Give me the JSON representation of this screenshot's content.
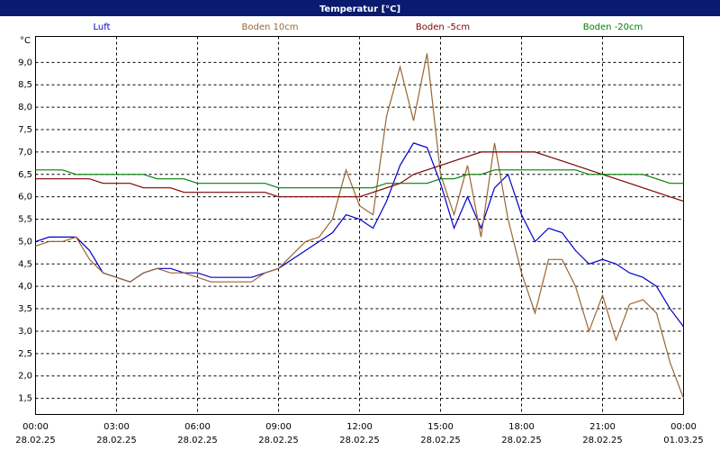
{
  "chart_data": {
    "type": "line",
    "title": "Temperatur [°C]",
    "y_label": "°C",
    "x": [
      0,
      0.5,
      1,
      1.5,
      2,
      2.5,
      3,
      3.5,
      4,
      4.5,
      5,
      5.5,
      6,
      6.5,
      7,
      7.5,
      8,
      8.5,
      9,
      9.5,
      10,
      10.5,
      11,
      11.5,
      12,
      12.5,
      13,
      13.5,
      14,
      14.5,
      15,
      15.5,
      16,
      16.5,
      17,
      17.5,
      18,
      18.5,
      19,
      19.5,
      20,
      20.5,
      21,
      21.5,
      22,
      22.5,
      23,
      23.5,
      24
    ],
    "series": [
      {
        "name": "Luft",
        "color": "#0000cc",
        "values": [
          5.0,
          5.1,
          5.1,
          5.1,
          4.8,
          4.3,
          4.2,
          4.1,
          4.3,
          4.4,
          4.4,
          4.3,
          4.3,
          4.2,
          4.2,
          4.2,
          4.2,
          4.3,
          4.4,
          4.6,
          4.8,
          5.0,
          5.2,
          5.6,
          5.5,
          5.3,
          5.9,
          6.7,
          7.2,
          7.1,
          6.3,
          5.3,
          6.0,
          5.3,
          6.2,
          6.5,
          5.6,
          5.0,
          5.3,
          5.2,
          4.8,
          4.5,
          4.6,
          4.5,
          4.3,
          4.2,
          4.0,
          3.5,
          3.1
        ]
      },
      {
        "name": "Boden 10cm",
        "color": "#996633",
        "values": [
          4.9,
          5.0,
          5.0,
          5.1,
          4.6,
          4.3,
          4.2,
          4.1,
          4.3,
          4.4,
          4.3,
          4.3,
          4.2,
          4.1,
          4.1,
          4.1,
          4.1,
          4.3,
          4.4,
          4.7,
          5.0,
          5.1,
          5.5,
          6.6,
          5.8,
          5.6,
          7.8,
          8.9,
          7.7,
          9.2,
          6.5,
          5.6,
          6.7,
          5.1,
          7.2,
          5.5,
          4.3,
          3.4,
          4.6,
          4.6,
          4.0,
          3.0,
          3.8,
          2.8,
          3.6,
          3.7,
          3.4,
          2.3,
          1.5
        ]
      },
      {
        "name": "Boden -5cm",
        "color": "#800000",
        "values": [
          6.4,
          6.4,
          6.4,
          6.4,
          6.4,
          6.3,
          6.3,
          6.3,
          6.2,
          6.2,
          6.2,
          6.1,
          6.1,
          6.1,
          6.1,
          6.1,
          6.1,
          6.1,
          6.0,
          6.0,
          6.0,
          6.0,
          6.0,
          6.0,
          6.0,
          6.1,
          6.2,
          6.3,
          6.5,
          6.6,
          6.7,
          6.8,
          6.9,
          7.0,
          7.0,
          7.0,
          7.0,
          7.0,
          6.9,
          6.8,
          6.7,
          6.6,
          6.5,
          6.4,
          6.3,
          6.2,
          6.1,
          6.0,
          5.9
        ]
      },
      {
        "name": "Boden -20cm",
        "color": "#008000",
        "values": [
          6.6,
          6.6,
          6.6,
          6.5,
          6.5,
          6.5,
          6.5,
          6.5,
          6.5,
          6.4,
          6.4,
          6.4,
          6.3,
          6.3,
          6.3,
          6.3,
          6.3,
          6.3,
          6.2,
          6.2,
          6.2,
          6.2,
          6.2,
          6.2,
          6.2,
          6.2,
          6.3,
          6.3,
          6.3,
          6.3,
          6.4,
          6.4,
          6.5,
          6.5,
          6.6,
          6.6,
          6.6,
          6.6,
          6.6,
          6.6,
          6.6,
          6.5,
          6.5,
          6.5,
          6.5,
          6.5,
          6.4,
          6.3,
          6.3
        ]
      }
    ],
    "xlim": [
      0,
      24
    ],
    "xticks": [
      {
        "value": 0,
        "label": "00:00",
        "date": "28.02.25"
      },
      {
        "value": 3,
        "label": "03:00",
        "date": "28.02.25"
      },
      {
        "value": 6,
        "label": "06:00",
        "date": "28.02.25"
      },
      {
        "value": 9,
        "label": "09:00",
        "date": "28.02.25"
      },
      {
        "value": 12,
        "label": "12:00",
        "date": "28.02.25"
      },
      {
        "value": 15,
        "label": "15:00",
        "date": "28.02.25"
      },
      {
        "value": 18,
        "label": "18:00",
        "date": "28.02.25"
      },
      {
        "value": 21,
        "label": "21:00",
        "date": "28.02.25"
      },
      {
        "value": 24,
        "label": "00:00",
        "date": "01.03.25"
      }
    ],
    "ylim": [
      1.14,
      9.58
    ],
    "yticks": [
      {
        "value": 1.5,
        "label": "1,5"
      },
      {
        "value": 2,
        "label": "2,0"
      },
      {
        "value": 2.5,
        "label": "2,5"
      },
      {
        "value": 3,
        "label": "3,0"
      },
      {
        "value": 3.5,
        "label": "3,5"
      },
      {
        "value": 4,
        "label": "4,0"
      },
      {
        "value": 4.5,
        "label": "4,5"
      },
      {
        "value": 5,
        "label": "5,0"
      },
      {
        "value": 5.5,
        "label": "5,5"
      },
      {
        "value": 6,
        "label": "6,0"
      },
      {
        "value": 6.5,
        "label": "6,5"
      },
      {
        "value": 7,
        "label": "7,0"
      },
      {
        "value": 7.5,
        "label": "7,5"
      },
      {
        "value": 8,
        "label": "8,0"
      },
      {
        "value": 8.5,
        "label": "8,5"
      },
      {
        "value": 9,
        "label": "9,0"
      }
    ],
    "grid": true
  }
}
